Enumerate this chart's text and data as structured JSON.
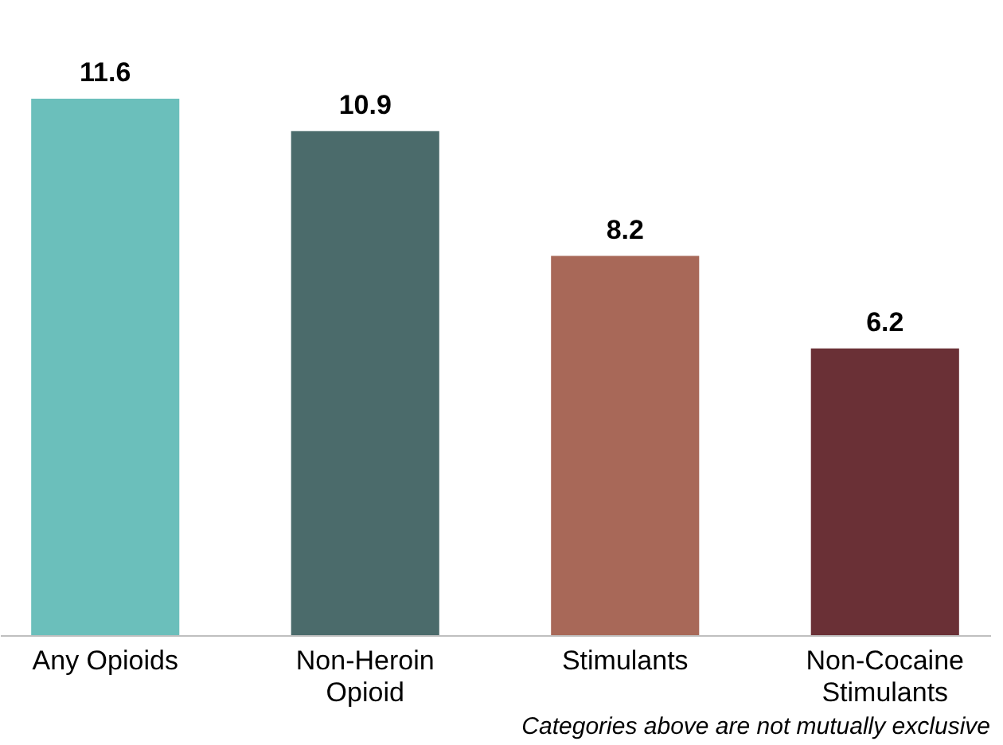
{
  "chart_data": {
    "type": "bar",
    "categories": [
      "Any Opioids",
      "Non-Heroin Opioid",
      "Stimulants",
      "Non-Cocaine Stimulants"
    ],
    "values": [
      11.6,
      10.9,
      8.2,
      6.2
    ],
    "colors": [
      "#6bbfbb",
      "#4b6b6b",
      "#a86858",
      "#6a3036"
    ],
    "data_labels": true,
    "annotations": [
      "Categories above are not mutually exclusive"
    ]
  }
}
